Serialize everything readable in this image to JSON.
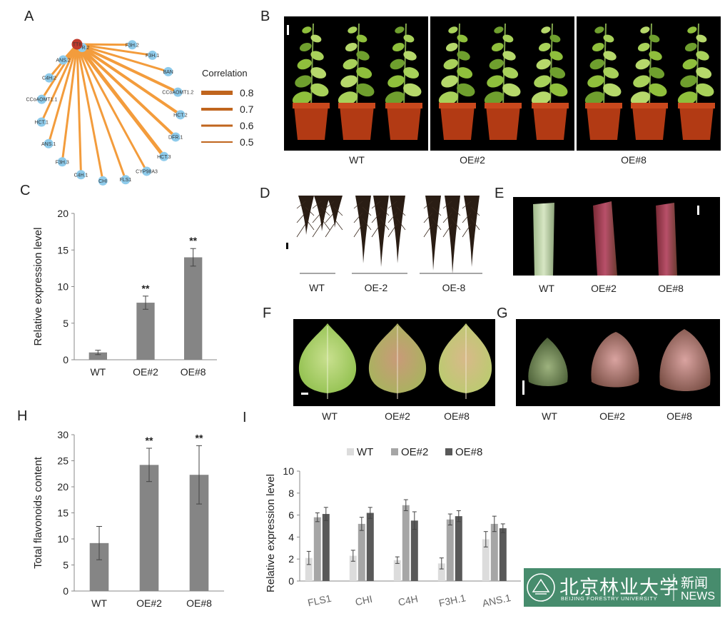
{
  "panels": {
    "A": "A",
    "B": "B",
    "C": "C",
    "D": "D",
    "E": "E",
    "F": "F",
    "G": "G",
    "H": "H",
    "I": "I"
  },
  "network": {
    "center": "TT8",
    "nodes": [
      "F3H.2",
      "F3H.1",
      "BAN",
      "CCoAOMT1.2",
      "HCT.2",
      "DFR.1",
      "HCT.3",
      "CYP98A3",
      "FLS1",
      "CHI",
      "C4H.1",
      "F3H.3",
      "ANS.1",
      "HCT.1",
      "CCoAOMT1.1",
      "C4H.2",
      "ANS.2",
      "DFR.2"
    ],
    "legend_title": "Correlation",
    "legend_values": [
      "0.8",
      "0.7",
      "0.6",
      "0.5"
    ]
  },
  "photo_captions": {
    "B": [
      "WT",
      "OE#2",
      "OE#8"
    ],
    "D": [
      "WT",
      "OE-2",
      "OE-8"
    ],
    "E": [
      "WT",
      "OE#2",
      "OE#8"
    ],
    "F": [
      "WT",
      "OE#2",
      "OE#8"
    ],
    "G": [
      "WT",
      "OE#2",
      "OE#8"
    ]
  },
  "chart_data": [
    {
      "panel": "C",
      "type": "bar",
      "categories": [
        "WT",
        "OE#2",
        "OE#8"
      ],
      "values": [
        1.0,
        7.8,
        14.0
      ],
      "errors": [
        0.3,
        0.9,
        1.2
      ],
      "significance": [
        "",
        "**",
        "**"
      ],
      "ylabel": "Relative  expression level",
      "ylim": [
        0,
        20
      ],
      "yticks": [
        0,
        5,
        10,
        15,
        20
      ],
      "color": "#858585"
    },
    {
      "panel": "H",
      "type": "bar",
      "categories": [
        "WT",
        "OE#2",
        "OE#8"
      ],
      "values": [
        9.2,
        24.2,
        22.3
      ],
      "errors": [
        3.2,
        3.2,
        5.6
      ],
      "significance": [
        "",
        "**",
        "**"
      ],
      "ylabel": "Total flavonoids content",
      "ylim": [
        0,
        30
      ],
      "yticks": [
        0,
        5,
        10,
        15,
        20,
        25,
        30
      ],
      "color": "#858585"
    },
    {
      "panel": "I",
      "type": "bar",
      "categories": [
        "FLS1",
        "CHI",
        "C4H",
        "F3H.1",
        "ANS.1"
      ],
      "series": [
        {
          "name": "WT",
          "values": [
            2.1,
            2.3,
            1.9,
            1.6,
            3.8
          ],
          "errors": [
            0.6,
            0.5,
            0.3,
            0.5,
            0.7
          ],
          "color": "#dcdcdc"
        },
        {
          "name": "OE#2",
          "values": [
            5.8,
            5.2,
            6.9,
            5.6,
            5.2
          ],
          "errors": [
            0.4,
            0.6,
            0.5,
            0.5,
            0.7
          ],
          "color": "#a6a6a6"
        },
        {
          "name": "OE#8",
          "values": [
            6.1,
            6.2,
            5.5,
            5.9,
            4.8
          ],
          "errors": [
            0.6,
            0.5,
            0.8,
            0.5,
            0.4
          ],
          "color": "#595959"
        }
      ],
      "ylabel": "Relative  expression level",
      "ylim": [
        0,
        10
      ],
      "yticks": [
        0,
        2,
        4,
        6,
        8,
        10
      ],
      "legend": "top"
    }
  ],
  "watermark": {
    "university_cn": "北京林业大学",
    "university_en": "BEIJING FORESTRY UNIVERSITY",
    "news_cn": "新闻",
    "news_en": "NEWS"
  }
}
